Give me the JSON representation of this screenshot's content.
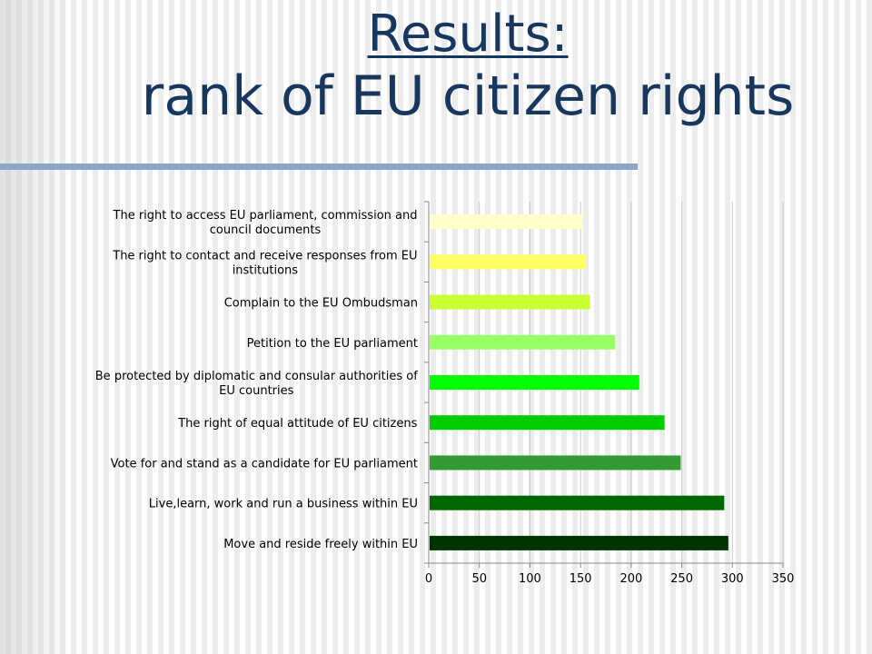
{
  "slide": {
    "title_line1": "Results:",
    "title_line2": "rank of EU citizen rights"
  },
  "chart_data": {
    "type": "bar",
    "orientation": "horizontal",
    "categories": [
      "The right to access EU parliament, commission and council documents",
      "The right to contact and receive responses from EU institutions",
      "Complain to the EU Ombudsman",
      "Petition to the EU parliament",
      "Be protected by diplomatic and consular authorities of EU countries",
      "The right of equal attitude of EU citizens",
      "Vote for and stand as a candidate for EU parliament",
      "Live,learn, work and run a business within EU",
      "Move and reside freely within EU"
    ],
    "category_lines": [
      [
        "The right to access EU parliament, commission and",
        "council documents"
      ],
      [
        "The right to contact and receive responses from EU",
        "institutions"
      ],
      [
        "Complain to the EU Ombudsman"
      ],
      [
        "Petition to the EU parliament"
      ],
      [
        "Be protected by diplomatic and consular authorities of",
        "EU countries"
      ],
      [
        "The right of equal attitude of EU citizens"
      ],
      [
        "Vote for and stand as a candidate for EU parliament"
      ],
      [
        "Live,learn, work and run a business within EU"
      ],
      [
        "Move and reside freely within EU"
      ]
    ],
    "values": [
      152,
      155,
      159,
      184,
      208,
      233,
      249,
      292,
      296
    ],
    "bar_colors": [
      "#ffffcc",
      "#ffff66",
      "#ccff33",
      "#99ff66",
      "#00ff00",
      "#00cc00",
      "#339933",
      "#006600",
      "#003300"
    ],
    "xlim": [
      0,
      350
    ],
    "xticks": [
      "0",
      "50",
      "100",
      "150",
      "200",
      "250",
      "300",
      "350"
    ],
    "grid": true,
    "legend": "none"
  }
}
